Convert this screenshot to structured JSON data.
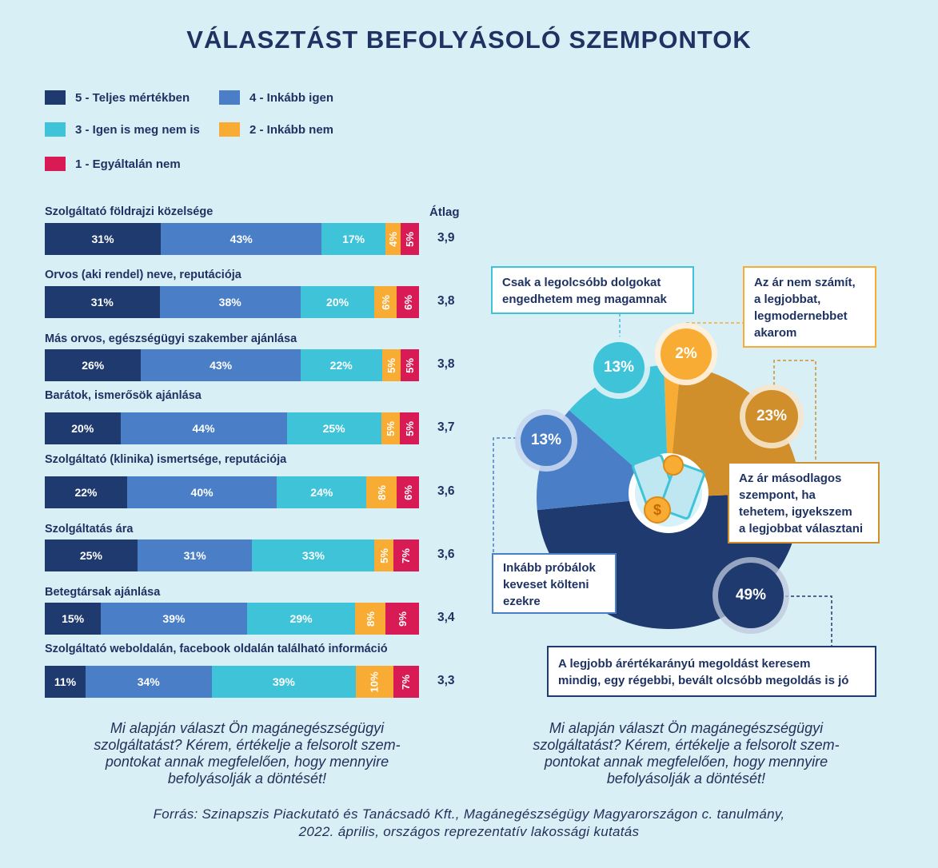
{
  "title": "VÁLASZTÁST BEFOLYÁSOLÓ SZEMPONTOK",
  "legend": [
    {
      "label": "5 - Teljes mértékben",
      "color": "#1e3a6e"
    },
    {
      "label": "4 - Inkább igen",
      "color": "#4a7fc8"
    },
    {
      "label": "3 - Igen is meg nem is",
      "color": "#3ec3d9"
    },
    {
      "label": "2 - Inkább nem",
      "color": "#f9ac33"
    },
    {
      "label": "1 - Egyáltalán nem",
      "color": "#d81b55"
    }
  ],
  "avg_header": "Átlag",
  "chart_data": [
    {
      "type": "bar",
      "stacked": true,
      "orientation": "horizontal",
      "categories": [
        "Szolgáltató földrajzi közelsége",
        "Orvos (aki rendel) neve, reputációja",
        "Más orvos, egészségügyi szakember ajánlása",
        "Barátok, ismerősök ajánlása",
        "Szolgáltató (klinika) ismertsége, reputációja",
        "Szolgáltatás ára",
        "Betegtársak ajánlása",
        "Szolgáltató weboldalán, facebook oldalán található információ"
      ],
      "series": [
        {
          "name": "5 - Teljes mértékben",
          "values": [
            31,
            31,
            26,
            20,
            22,
            25,
            15,
            11
          ]
        },
        {
          "name": "4 - Inkább igen",
          "values": [
            43,
            38,
            43,
            44,
            40,
            31,
            39,
            34
          ]
        },
        {
          "name": "3 - Igen is meg nem is",
          "values": [
            17,
            20,
            22,
            25,
            24,
            33,
            29,
            39
          ]
        },
        {
          "name": "2 - Inkább nem",
          "values": [
            4,
            6,
            5,
            5,
            8,
            5,
            8,
            10
          ]
        },
        {
          "name": "1 - Egyáltalán nem",
          "values": [
            5,
            6,
            5,
            5,
            6,
            7,
            9,
            7
          ]
        }
      ],
      "averages": [
        "3,9",
        "3,8",
        "3,8",
        "3,7",
        "3,6",
        "3,6",
        "3,4",
        "3,3"
      ]
    },
    {
      "type": "pie",
      "slices": [
        {
          "label": "A legjobb árértékarányú megoldást keresem mindig, egy régebbi, bevált olcsóbb megoldás is jó",
          "value": 49,
          "color": "#1e3a6e"
        },
        {
          "label": "Inkább próbálok keveset költeni ezekre",
          "value": 13,
          "color": "#4a7fc8"
        },
        {
          "label": "Csak a legolcsóbb dolgokat engedhetem meg magamnak",
          "value": 13,
          "color": "#3ec3d9"
        },
        {
          "label": "Az ár nem számít, a legjobbat, legmodernebbet akarom",
          "value": 2,
          "color": "#f9ac33"
        },
        {
          "label": "Az ár másodlagos szempont, ha tehetem, igyekszem a legjobbat választani",
          "value": 23,
          "color": "#d08f2b"
        }
      ]
    }
  ],
  "pie_labels": {
    "s49": "49%",
    "s13a": "13%",
    "s13b": "13%",
    "s2": "2%",
    "s23": "23%"
  },
  "callouts": {
    "c49_line1": "A legjobb árértékarányú megoldást keresem",
    "c49_line2": "mindig, egy régebbi, bevált olcsóbb megoldás is jó",
    "c13a_line1": "Inkább próbálok",
    "c13a_line2": "keveset költeni",
    "c13a_line3": "ezekre",
    "c13b_line1": "Csak a legolcsóbb dolgokat",
    "c13b_line2": "engedhetem meg magamnak",
    "c2_line1": "Az ár nem számít,",
    "c2_line2": "a legjobbat,",
    "c2_line3": "legmodernebbet",
    "c2_line4": "akarom",
    "c23_line1": "Az ár másodlagos",
    "c23_line2": "szempont, ha",
    "c23_line3": "tehetem, igyekszem",
    "c23_line4": "a legjobbat választani"
  },
  "question_left": [
    "Mi alapján választ Ön magánegészségügyi",
    "szolgáltatást? Kérem, értékelje a felsorolt szem-",
    "pontokat annak megfelelően, hogy mennyire",
    "befolyásolják a döntését!"
  ],
  "question_right": [
    "Mi alapján választ Ön magánegészségügyi",
    "szolgáltatást? Kérem, értékelje a felsorolt szem-",
    "pontokat annak megfelelően, hogy mennyire",
    "befolyásolják a döntését!"
  ],
  "source": [
    "Forrás: Szinapszis Piackutató és Tanácsadó Kft., Magánegészségügy Magyarországon c. tanulmány,",
    "2022. április, országos reprezentatív lakossági kutatás"
  ]
}
